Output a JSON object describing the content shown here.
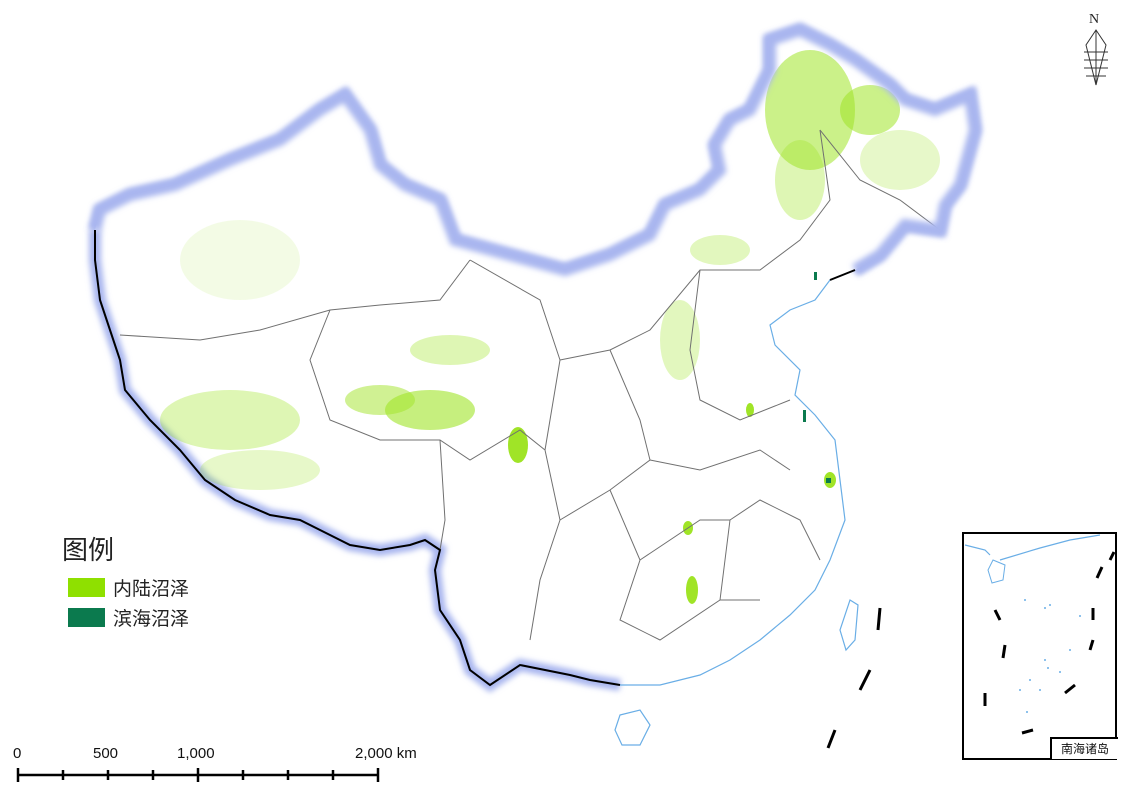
{
  "legend": {
    "title": "图例",
    "items": [
      {
        "label": "内陆沼泽",
        "color": "#8fe000"
      },
      {
        "label": "滨海沼泽",
        "color": "#0b7a4e"
      }
    ]
  },
  "scale_bar": {
    "labels": [
      "0",
      "500",
      "1,000",
      "2,000 km"
    ]
  },
  "north_arrow": {
    "label": "N",
    "icon": "north-arrow-icon"
  },
  "inset": {
    "label": "南海诸岛"
  },
  "colors": {
    "border": "#000000",
    "border_glow": "#a9b6ef",
    "province_line": "#707070",
    "water": "#6aaee6"
  }
}
